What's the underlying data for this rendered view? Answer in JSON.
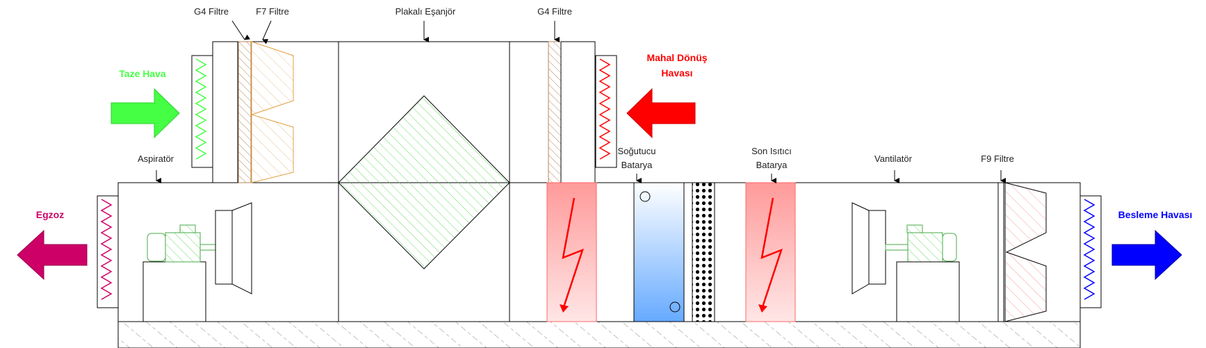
{
  "labels": {
    "g4_filter_top": "G4 Filtre",
    "f7_filter": "F7 Filtre",
    "plate_exchanger": "Plakalı Eşanjör",
    "g4_filter_return": "G4 Filtre",
    "aspirator": "Aspiratör",
    "cooling_coil_1": "Soğutucu",
    "cooling_coil_2": "Batarya",
    "reheater_1": "Son Isıtıcı",
    "reheater_2": "Batarya",
    "fan": "Vantilatör",
    "f9_filter": "F9 Filtre"
  },
  "flows": {
    "fresh_air": "Taze Hava",
    "return_air_1": "Mahal Dönüş",
    "return_air_2": "Havası",
    "exhaust": "Egzoz",
    "supply_air": "Besleme Havası"
  },
  "colors": {
    "fresh": "#44ff44",
    "return": "#ff0000",
    "exhaust": "#cc0066",
    "supply": "#0000ff",
    "heater_fill": "#ff9a9a",
    "cooler_top": "#ffffff",
    "cooler_bottom": "#66aaff"
  }
}
